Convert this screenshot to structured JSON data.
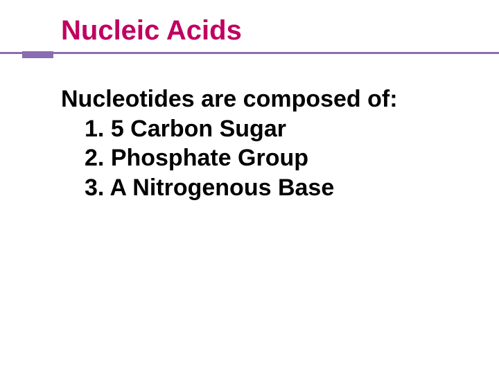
{
  "slide": {
    "title": "Nucleic Acids",
    "title_color": "#c00060",
    "title_fontsize": 40,
    "underline_color": "#8a6cb0",
    "background_color": "#ffffff",
    "body": {
      "heading": "Nucleotides are composed of:",
      "text_color": "#000000",
      "fontsize": 34,
      "items": [
        {
          "number": "1.",
          "text": " 5 Carbon Sugar"
        },
        {
          "number": "2.",
          "text": "Phosphate Group"
        },
        {
          "number": "3.",
          "text": "A Nitrogenous Base"
        }
      ]
    }
  }
}
